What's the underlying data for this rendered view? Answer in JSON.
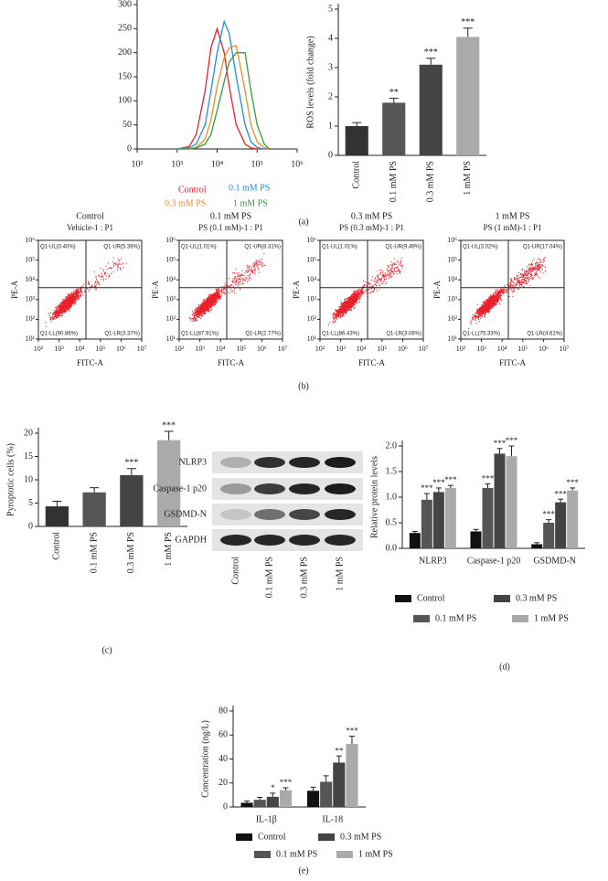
{
  "panel_labels": [
    "(a)",
    "(b)",
    "(c)",
    "(d)",
    "(e)"
  ],
  "western_blot": {
    "rows": [
      "NLRP3",
      "Caspase-1 p20",
      "GSDMD-N",
      "GAPDH"
    ],
    "lanes": [
      "Control",
      "0.1 mM PS",
      "0.3 mM PS",
      "1 mM PS"
    ]
  },
  "chart_data": [
    {
      "type": "line",
      "log_x": true,
      "x": [
        1000,
        2000,
        3000,
        5000,
        7000,
        10000,
        15000,
        20000,
        30000,
        50000,
        70000,
        100000,
        150000,
        200000
      ],
      "xlim": [
        100,
        1000000
      ],
      "xticks": [
        {
          "value": 100,
          "label": "10²"
        },
        {
          "value": 1000,
          "label": "10³"
        },
        {
          "value": 10000,
          "label": "10⁴"
        },
        {
          "value": 100000,
          "label": "10⁵"
        },
        {
          "value": 1000000,
          "label": "10⁶"
        }
      ],
      "ylim": [
        0,
        300
      ],
      "yticks": [
        0,
        50,
        100,
        150,
        200,
        250,
        300
      ],
      "series": [
        {
          "name": "Control",
          "color": "#e8202a",
          "values": [
            0,
            5,
            30,
            120,
            210,
            250,
            200,
            130,
            50,
            10,
            2,
            0,
            0,
            0
          ]
        },
        {
          "name": "0.1 mM PS",
          "color": "#1f8fd6",
          "values": [
            0,
            2,
            10,
            50,
            120,
            200,
            265,
            240,
            150,
            50,
            15,
            3,
            0,
            0
          ]
        },
        {
          "name": "0.3 mM PS",
          "color": "#f08c28",
          "values": [
            0,
            0,
            3,
            20,
            60,
            130,
            190,
            210,
            215,
            120,
            50,
            15,
            3,
            0
          ]
        },
        {
          "name": "1 mM PS",
          "color": "#3a9a3a",
          "values": [
            0,
            0,
            2,
            10,
            30,
            80,
            140,
            180,
            200,
            200,
            120,
            50,
            10,
            0
          ]
        }
      ]
    },
    {
      "type": "bar",
      "ylabel": "ROS levels (fold change)",
      "categories": [
        "Control",
        "0.1 mM PS",
        "0.3 mM PS",
        "1 mM PS"
      ],
      "values": [
        1.0,
        1.8,
        3.1,
        4.05
      ],
      "errors": [
        0.12,
        0.15,
        0.22,
        0.3
      ],
      "significance": [
        null,
        "**",
        "***",
        "***"
      ],
      "colors": [
        "#333333",
        "#555555",
        "#444444",
        "#aaaaaa"
      ],
      "ylim": [
        0,
        5
      ],
      "yticks": [
        0,
        1,
        2,
        3,
        4,
        5
      ]
    },
    {
      "type": "flow",
      "title": "Control",
      "subtitle": "Vehicle-1 : P1",
      "xlabel": "FITC-A",
      "ylabel": "PE-A",
      "log_x": true,
      "log_y": true,
      "xlim": [
        100,
        10000000
      ],
      "ylim": [
        10,
        1000000
      ],
      "gate": [
        20000,
        4000
      ],
      "xticks": [
        {
          "value": 100,
          "label": "10²"
        },
        {
          "value": 1000,
          "label": "10³"
        },
        {
          "value": 10000,
          "label": "10⁴"
        },
        {
          "value": 100000,
          "label": "10⁵"
        },
        {
          "value": 1000000,
          "label": "10⁶"
        },
        {
          "value": 10000000,
          "label": "10⁷"
        }
      ],
      "yticks": [
        {
          "value": 10,
          "label": "10¹"
        },
        {
          "value": 100,
          "label": "10²"
        },
        {
          "value": 1000,
          "label": "10³"
        },
        {
          "value": 10000,
          "label": "10⁴"
        },
        {
          "value": 100000,
          "label": "10⁵"
        },
        {
          "value": 1000000,
          "label": "10⁶"
        }
      ],
      "quadrants": {
        "UL": "Q1-UL(0.40%)",
        "UR": "Q1-UR(5.36%)",
        "LL": "Q1-LL(90.86%)",
        "LR": "Q1-LR(3.37%)"
      },
      "color": "#e8202a"
    },
    {
      "type": "flow",
      "title": "0.1 mM PS",
      "subtitle": "PS (0.1 mM)-1 : P1",
      "xlabel": "FITC-A",
      "ylabel": "PE-A",
      "log_x": true,
      "log_y": true,
      "xlim": [
        100,
        10000000
      ],
      "ylim": [
        10,
        1000000
      ],
      "gate": [
        20000,
        4000
      ],
      "xticks": [
        {
          "value": 100,
          "label": "10²"
        },
        {
          "value": 1000,
          "label": "10³"
        },
        {
          "value": 10000,
          "label": "10⁴"
        },
        {
          "value": 100000,
          "label": "10⁵"
        },
        {
          "value": 1000000,
          "label": "10⁶"
        },
        {
          "value": 10000000,
          "label": "10⁷"
        }
      ],
      "yticks": [
        {
          "value": 10,
          "label": "10¹"
        },
        {
          "value": 100,
          "label": "10²"
        },
        {
          "value": 1000,
          "label": "10³"
        },
        {
          "value": 10000,
          "label": "10⁴"
        },
        {
          "value": 100000,
          "label": "10⁵"
        },
        {
          "value": 1000000,
          "label": "10⁶"
        }
      ],
      "quadrants": {
        "UL": "Q1-UL(1.01%)",
        "UR": "Q1-UR(8.31%)",
        "LL": "Q1-LL(87.91%)",
        "LR": "Q1-LR(2.77%)"
      },
      "color": "#e8202a"
    },
    {
      "type": "flow",
      "title": "0.3 mM PS",
      "subtitle": "PS (0.3 mM)-1 : P1",
      "xlabel": "FITC-A",
      "ylabel": "PE-A",
      "log_x": true,
      "log_y": true,
      "xlim": [
        100,
        10000000
      ],
      "ylim": [
        10,
        1000000
      ],
      "gate": [
        20000,
        4000
      ],
      "xticks": [
        {
          "value": 100,
          "label": "10²"
        },
        {
          "value": 1000,
          "label": "10³"
        },
        {
          "value": 10000,
          "label": "10⁴"
        },
        {
          "value": 100000,
          "label": "10⁵"
        },
        {
          "value": 1000000,
          "label": "10⁶"
        },
        {
          "value": 10000000,
          "label": "10⁷"
        }
      ],
      "yticks": [
        {
          "value": 10,
          "label": "10¹"
        },
        {
          "value": 100,
          "label": "10²"
        },
        {
          "value": 1000,
          "label": "10³"
        },
        {
          "value": 10000,
          "label": "10⁴"
        },
        {
          "value": 100000,
          "label": "10⁵"
        },
        {
          "value": 1000000,
          "label": "10⁶"
        }
      ],
      "quadrants": {
        "UL": "Q1-UL(1.01%)",
        "UR": "Q1-UR(9.49%)",
        "LL": "Q1-LL(86.43%)",
        "LR": "Q1-LR(3.08%)"
      },
      "color": "#e8202a"
    },
    {
      "type": "flow",
      "title": "1 mM PS",
      "subtitle": "PS (1 mM)-1 : P1",
      "xlabel": "FITC-A",
      "ylabel": "PE-A",
      "log_x": true,
      "log_y": true,
      "xlim": [
        100,
        10000000
      ],
      "ylim": [
        10,
        1000000
      ],
      "gate": [
        20000,
        4000
      ],
      "xticks": [
        {
          "value": 100,
          "label": "10²"
        },
        {
          "value": 1000,
          "label": "10³"
        },
        {
          "value": 10000,
          "label": "10⁴"
        },
        {
          "value": 100000,
          "label": "10⁵"
        },
        {
          "value": 1000000,
          "label": "10⁶"
        },
        {
          "value": 10000000,
          "label": "10⁷"
        }
      ],
      "yticks": [
        {
          "value": 10,
          "label": "10¹"
        },
        {
          "value": 100,
          "label": "10²"
        },
        {
          "value": 1000,
          "label": "10³"
        },
        {
          "value": 10000,
          "label": "10⁴"
        },
        {
          "value": 100000,
          "label": "10⁵"
        },
        {
          "value": 1000000,
          "label": "10⁶"
        }
      ],
      "quadrants": {
        "UL": "Q1-UL(3.02%)",
        "UR": "Q1-UR(17.04%)",
        "LL": "Q1-LL(75.33%)",
        "LR": "Q1-LR(4.61%)"
      },
      "color": "#e8202a"
    },
    {
      "type": "bar",
      "ylabel": "Pyroptotic cells (%)",
      "categories": [
        "Control",
        "0.1 mM PS",
        "0.3 mM PS",
        "1 mM PS"
      ],
      "values": [
        4.3,
        7.3,
        11,
        18.5
      ],
      "errors": [
        1.1,
        1.0,
        1.4,
        1.9
      ],
      "significance": [
        null,
        null,
        "***",
        "***"
      ],
      "colors": [
        "#333333",
        "#555555",
        "#444444",
        "#aaaaaa"
      ],
      "ylim": [
        0,
        20
      ],
      "yticks": [
        0,
        5,
        10,
        15,
        20
      ]
    },
    {
      "type": "grouped_bar",
      "ylabel": "Relative protein levels",
      "categories": [
        "NLRP3",
        "Caspase-1 p20",
        "GSDMD-N"
      ],
      "ylim": [
        0,
        2.0
      ],
      "yticks": [
        {
          "value": 0,
          "label": "0.0"
        },
        0.5,
        {
          "value": 1,
          "label": "1.0"
        },
        1.5,
        {
          "value": 2,
          "label": "2.0"
        }
      ],
      "series": [
        {
          "name": "Control",
          "color": "#111111",
          "values": [
            0.3,
            0.33,
            0.08
          ],
          "errors": [
            0.03,
            0.04,
            0.03
          ],
          "significance": [
            null,
            null,
            null
          ]
        },
        {
          "name": "0.1 mM PS",
          "color": "#555555",
          "values": [
            0.95,
            1.18,
            0.5
          ],
          "errors": [
            0.12,
            0.08,
            0.06
          ],
          "significance": [
            "***",
            "***",
            "***"
          ]
        },
        {
          "name": "0.3 mM PS",
          "color": "#444444",
          "values": [
            1.1,
            1.85,
            0.9
          ],
          "errors": [
            0.08,
            0.1,
            0.06
          ],
          "significance": [
            "***",
            "***",
            "***"
          ]
        },
        {
          "name": "1 mM PS",
          "color": "#aaaaaa",
          "values": [
            1.18,
            1.8,
            1.13
          ],
          "errors": [
            0.05,
            0.2,
            0.05
          ],
          "significance": [
            "***",
            "***",
            "***"
          ]
        }
      ]
    },
    {
      "type": "grouped_bar",
      "ylabel": "Concentration (ng/L)",
      "categories": [
        "IL-1β",
        "IL-18"
      ],
      "ylim": [
        0,
        80
      ],
      "yticks": [
        0,
        20,
        40,
        60,
        80
      ],
      "series": [
        {
          "name": "Control",
          "color": "#111111",
          "values": [
            3.5,
            13.5
          ],
          "errors": [
            1.5,
            3
          ],
          "significance": [
            null,
            null
          ]
        },
        {
          "name": "0.1 mM PS",
          "color": "#555555",
          "values": [
            6,
            21
          ],
          "errors": [
            2,
            5
          ],
          "significance": [
            null,
            null
          ]
        },
        {
          "name": "0.3 mM PS",
          "color": "#444444",
          "values": [
            8.5,
            37
          ],
          "errors": [
            3,
            5.5
          ],
          "significance": [
            "*",
            "**"
          ]
        },
        {
          "name": "1 mM PS",
          "color": "#aaaaaa",
          "values": [
            14,
            52.5
          ],
          "errors": [
            2,
            6.5
          ],
          "significance": [
            "***",
            "***"
          ]
        }
      ]
    }
  ]
}
